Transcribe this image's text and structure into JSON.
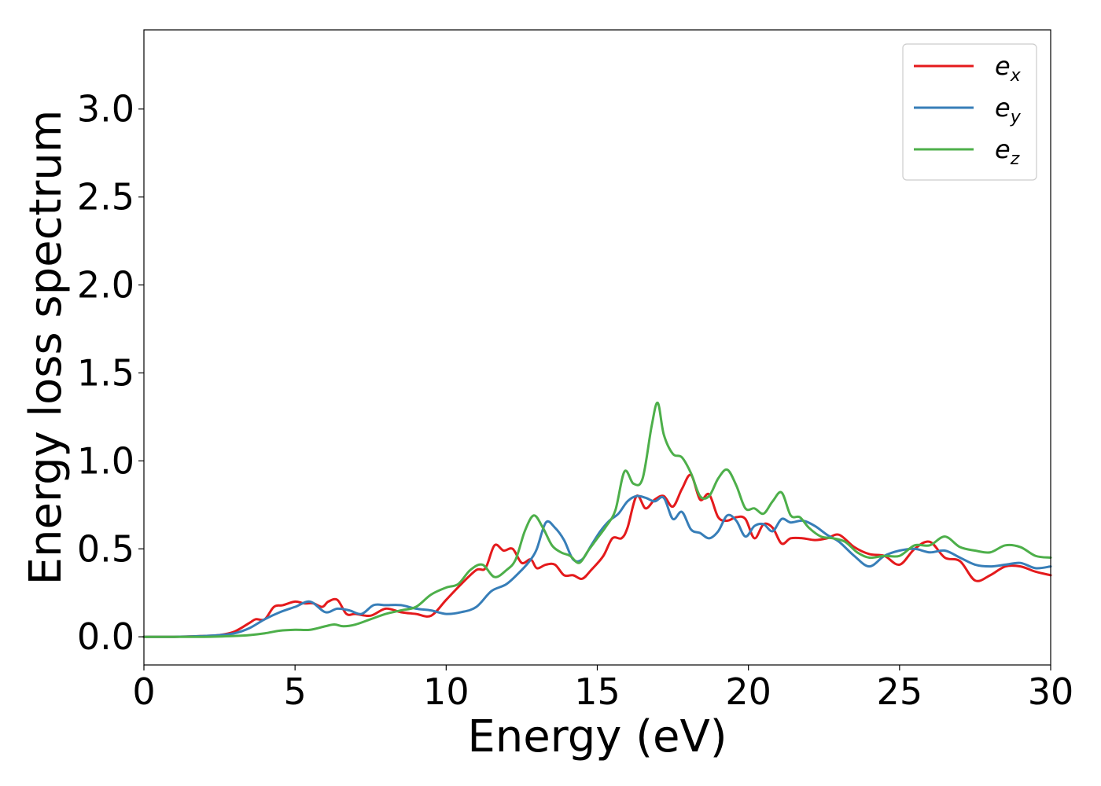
{
  "chart_data": {
    "type": "line",
    "title": "",
    "xlabel": "Energy (eV)",
    "ylabel": "Energy loss spectrum",
    "xlim": [
      0,
      30
    ],
    "ylim": [
      -0.16,
      3.45
    ],
    "xticks": [
      0,
      5,
      10,
      15,
      20,
      25,
      30
    ],
    "yticks": [
      0.0,
      0.5,
      1.0,
      1.5,
      2.0,
      2.5,
      3.0
    ],
    "xtick_labels": [
      "0",
      "5",
      "10",
      "15",
      "20",
      "25",
      "30"
    ],
    "ytick_labels": [
      "0.0",
      "0.5",
      "1.0",
      "1.5",
      "2.0",
      "2.5",
      "3.0"
    ],
    "grid": false,
    "legend_position": "top-right",
    "series": [
      {
        "name": "e",
        "subscript": "x",
        "color": "#e41a1c",
        "x": [
          0,
          1,
          2,
          2.5,
          3,
          3.5,
          3.7,
          4,
          4.3,
          4.6,
          5,
          5.3,
          5.6,
          5.9,
          6.1,
          6.4,
          6.7,
          7,
          7.5,
          8,
          8.5,
          9,
          9.5,
          10,
          10.5,
          11,
          11.3,
          11.6,
          11.9,
          12.2,
          12.5,
          12.8,
          13,
          13.3,
          13.6,
          13.9,
          14.2,
          14.5,
          14.8,
          15.2,
          15.5,
          15.8,
          16,
          16.3,
          16.6,
          16.9,
          17.2,
          17.5,
          17.8,
          18.1,
          18.4,
          18.7,
          19,
          19.3,
          19.6,
          19.9,
          20.2,
          20.5,
          20.8,
          21.1,
          21.4,
          21.8,
          22.2,
          22.6,
          23,
          23.5,
          24,
          24.5,
          25,
          25.5,
          26,
          26.5,
          27,
          27.5,
          28,
          28.5,
          29,
          29.5,
          30
        ],
        "values": [
          0.0,
          0.0,
          0.005,
          0.01,
          0.03,
          0.08,
          0.1,
          0.1,
          0.17,
          0.18,
          0.2,
          0.19,
          0.19,
          0.17,
          0.2,
          0.21,
          0.13,
          0.13,
          0.12,
          0.16,
          0.14,
          0.13,
          0.12,
          0.21,
          0.3,
          0.38,
          0.39,
          0.52,
          0.49,
          0.5,
          0.42,
          0.44,
          0.39,
          0.41,
          0.41,
          0.35,
          0.35,
          0.33,
          0.38,
          0.46,
          0.56,
          0.56,
          0.62,
          0.8,
          0.73,
          0.78,
          0.8,
          0.74,
          0.84,
          0.92,
          0.78,
          0.81,
          0.68,
          0.66,
          0.68,
          0.67,
          0.56,
          0.64,
          0.62,
          0.53,
          0.56,
          0.56,
          0.55,
          0.56,
          0.58,
          0.51,
          0.47,
          0.46,
          0.41,
          0.5,
          0.54,
          0.45,
          0.43,
          0.32,
          0.35,
          0.4,
          0.4,
          0.37,
          0.35
        ]
      },
      {
        "name": "e",
        "subscript": "y",
        "color": "#377eb8",
        "x": [
          0,
          1,
          2,
          2.5,
          3,
          3.5,
          4,
          4.5,
          5,
          5.5,
          6,
          6.4,
          6.8,
          7.2,
          7.6,
          8,
          8.5,
          9,
          9.5,
          10,
          10.5,
          11,
          11.5,
          12,
          12.5,
          12.8,
          13,
          13.3,
          13.6,
          13.9,
          14.2,
          14.5,
          14.8,
          15.1,
          15.4,
          15.7,
          16,
          16.3,
          16.6,
          16.9,
          17.2,
          17.5,
          17.8,
          18.1,
          18.4,
          18.7,
          19,
          19.3,
          19.6,
          19.9,
          20.2,
          20.5,
          20.8,
          21.1,
          21.4,
          21.8,
          22.2,
          22.6,
          23,
          23.5,
          24,
          24.5,
          25,
          25.5,
          26,
          26.5,
          27,
          27.5,
          28,
          28.5,
          29,
          29.5,
          30
        ],
        "values": [
          0.0,
          0.0,
          0.005,
          0.01,
          0.02,
          0.05,
          0.1,
          0.14,
          0.17,
          0.2,
          0.14,
          0.16,
          0.15,
          0.13,
          0.18,
          0.18,
          0.18,
          0.16,
          0.15,
          0.13,
          0.14,
          0.17,
          0.26,
          0.3,
          0.38,
          0.44,
          0.5,
          0.65,
          0.62,
          0.55,
          0.44,
          0.44,
          0.52,
          0.6,
          0.66,
          0.7,
          0.77,
          0.8,
          0.79,
          0.77,
          0.79,
          0.67,
          0.71,
          0.61,
          0.59,
          0.56,
          0.6,
          0.69,
          0.66,
          0.57,
          0.63,
          0.64,
          0.6,
          0.67,
          0.65,
          0.66,
          0.63,
          0.58,
          0.54,
          0.46,
          0.4,
          0.46,
          0.49,
          0.5,
          0.48,
          0.49,
          0.45,
          0.41,
          0.4,
          0.41,
          0.42,
          0.39,
          0.4
        ]
      },
      {
        "name": "e",
        "subscript": "z",
        "color": "#4daf4a",
        "x": [
          0,
          1,
          2,
          3,
          3.5,
          4,
          4.5,
          5,
          5.5,
          6,
          6.3,
          6.6,
          7,
          7.5,
          8,
          8.5,
          9,
          9.5,
          10,
          10.4,
          10.8,
          11.2,
          11.6,
          12,
          12.3,
          12.6,
          12.9,
          13.2,
          13.5,
          13.8,
          14.1,
          14.4,
          14.7,
          15,
          15.3,
          15.6,
          15.9,
          16.2,
          16.5,
          16.8,
          17,
          17.2,
          17.5,
          17.8,
          18.1,
          18.4,
          18.7,
          19,
          19.3,
          19.6,
          19.9,
          20.2,
          20.5,
          20.8,
          21.1,
          21.4,
          21.7,
          22,
          22.4,
          22.8,
          23.2,
          23.6,
          24,
          24.5,
          25,
          25.5,
          26,
          26.5,
          27,
          27.5,
          28,
          28.5,
          29,
          29.5,
          30
        ],
        "values": [
          0.0,
          0.0,
          0.0,
          0.005,
          0.01,
          0.02,
          0.035,
          0.04,
          0.04,
          0.06,
          0.07,
          0.06,
          0.07,
          0.1,
          0.13,
          0.15,
          0.17,
          0.24,
          0.28,
          0.3,
          0.38,
          0.41,
          0.34,
          0.38,
          0.44,
          0.6,
          0.69,
          0.62,
          0.52,
          0.48,
          0.46,
          0.42,
          0.49,
          0.56,
          0.63,
          0.72,
          0.94,
          0.87,
          0.9,
          1.2,
          1.33,
          1.15,
          1.04,
          1.02,
          0.93,
          0.8,
          0.8,
          0.9,
          0.95,
          0.86,
          0.73,
          0.73,
          0.7,
          0.77,
          0.82,
          0.69,
          0.68,
          0.62,
          0.57,
          0.56,
          0.54,
          0.48,
          0.45,
          0.46,
          0.46,
          0.52,
          0.52,
          0.57,
          0.51,
          0.49,
          0.48,
          0.52,
          0.51,
          0.46,
          0.45
        ]
      }
    ]
  }
}
